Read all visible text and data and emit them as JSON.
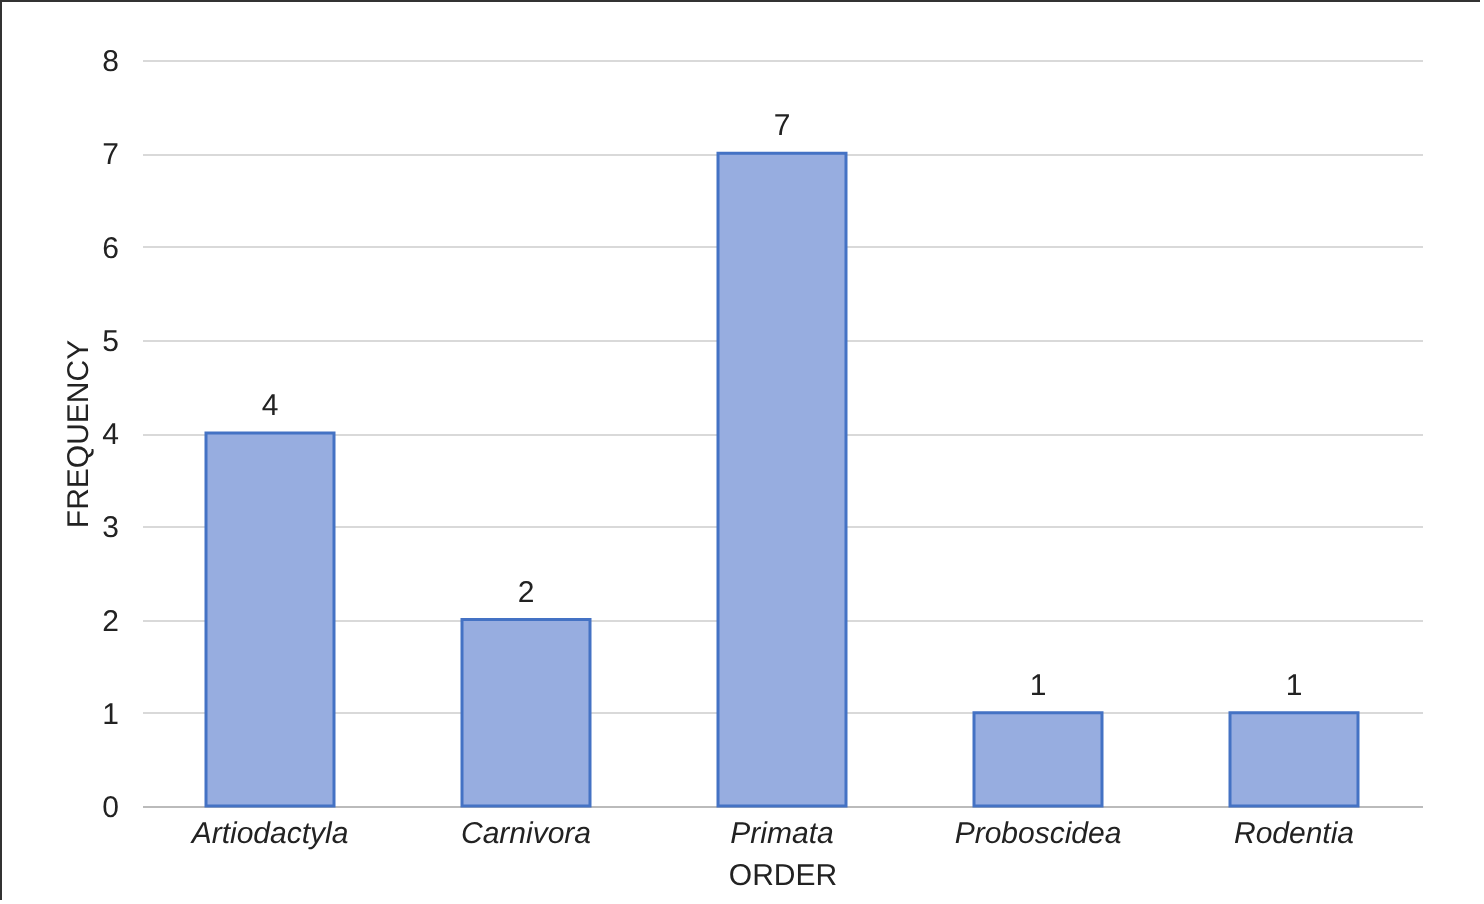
{
  "chart_data": {
    "type": "bar",
    "xlabel": "ORDER",
    "ylabel": "FREQUENCY",
    "categories": [
      "Artiodactyla",
      "Carnivora",
      "Primata",
      "Proboscidea",
      "Rodentia"
    ],
    "values": [
      4,
      2,
      7,
      1,
      1
    ],
    "color": "#97ade0",
    "ylim": [
      0,
      8
    ],
    "yticks": [
      0,
      1,
      2,
      3,
      4,
      5,
      6,
      7,
      8
    ],
    "grid": "y",
    "data_labels": true
  }
}
